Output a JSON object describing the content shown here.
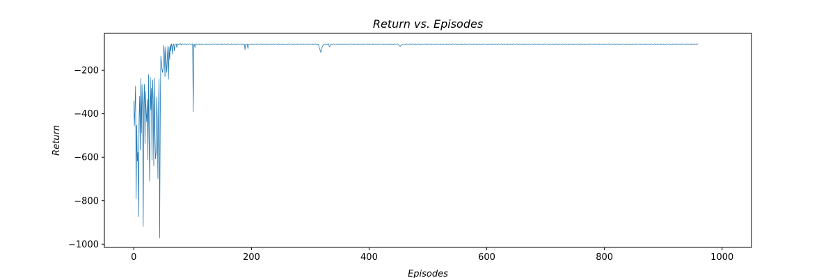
{
  "chart_data": {
    "type": "line",
    "title": "Return vs. Episodes",
    "xlabel": "Episodes",
    "ylabel": "Return",
    "xlim": [
      -50,
      1050
    ],
    "ylim": [
      -1015,
      -30
    ],
    "x_ticks": [
      0,
      200,
      400,
      600,
      800,
      1000
    ],
    "x_tick_labels": [
      "0",
      "200",
      "400",
      "600",
      "800",
      "1000"
    ],
    "y_ticks": [
      -200,
      -400,
      -600,
      -800,
      -1000
    ],
    "y_tick_labels": [
      "−200",
      "−400",
      "−600",
      "−800",
      "−1000"
    ],
    "grid": false,
    "series": [
      {
        "color": "#1f77b4",
        "x_start": 0,
        "x_step": 1,
        "values": [
          -340,
          -456,
          -365,
          -273,
          -790,
          -453,
          -618,
          -578,
          -873,
          -421,
          -319,
          -567,
          -238,
          -490,
          -266,
          -402,
          -918,
          -353,
          -265,
          -537,
          -297,
          -396,
          -438,
          -335,
          -611,
          -220,
          -513,
          -711,
          -231,
          -382,
          -283,
          -614,
          -244,
          -342,
          -640,
          -235,
          -497,
          -608,
          -579,
          -323,
          -426,
          -698,
          -385,
          -241,
          -972,
          -406,
          -135,
          -168,
          -196,
          -210,
          -180,
          -85,
          -120,
          -230,
          -92,
          -160,
          -210,
          -140,
          -88,
          -241,
          -95,
          -150,
          -82,
          -110,
          -78,
          -90,
          -125,
          -82,
          -78,
          -110,
          -85,
          -80,
          -78,
          -95,
          -80,
          -78,
          -82,
          -79,
          -80,
          -77,
          -80,
          -85,
          -80,
          -78,
          -79,
          -81,
          -80,
          -78,
          -80,
          -79,
          -82,
          -78,
          -80,
          -80,
          -79,
          -78,
          -80,
          -81,
          -79,
          -80,
          -78,
          -390,
          -82,
          -80,
          -95,
          -79,
          -78,
          -80,
          -82,
          -79,
          -80,
          -81,
          -78,
          -80,
          -79,
          -82,
          -80,
          -78,
          -79,
          -80,
          -81,
          -79,
          -80,
          -78,
          -82,
          -80,
          -79,
          -80,
          -78,
          -81,
          -80,
          -79,
          -82,
          -80,
          -78,
          -79,
          -81,
          -80,
          -79,
          -78,
          -80,
          -82,
          -79,
          -80,
          -78,
          -81,
          -80,
          -79,
          -80,
          -78,
          -82,
          -80,
          -79,
          -80,
          -78,
          -81,
          -80,
          -79,
          -82,
          -80,
          -78,
          -79,
          -80,
          -81,
          -79,
          -80,
          -78,
          -82,
          -80,
          -79,
          -80,
          -78,
          -81,
          -80,
          -79,
          -82,
          -80,
          -78,
          -79,
          -81,
          -80,
          -79,
          -78,
          -80,
          -82,
          -79,
          -80,
          -78,
          -81,
          -105,
          -80,
          -79,
          -82,
          -80,
          -100,
          -79,
          -80,
          -81,
          -79,
          -80,
          -78,
          -82,
          -80,
          -79,
          -80,
          -78,
          -81,
          -80,
          -79,
          -82,
          -80,
          -78,
          -79,
          -81,
          -80,
          -79,
          -78,
          -80,
          -82,
          -79,
          -80,
          -78,
          -81,
          -80,
          -79,
          -80,
          -78,
          -82,
          -80,
          -79,
          -80,
          -78,
          -81,
          -80,
          -79,
          -82,
          -80,
          -78,
          -79,
          -81,
          -80,
          -79,
          -78,
          -80,
          -82,
          -79,
          -80,
          -78,
          -81,
          -80,
          -79,
          -80,
          -78,
          -82,
          -80,
          -79,
          -80,
          -78,
          -81,
          -80,
          -79,
          -82,
          -80,
          -78,
          -79,
          -81,
          -80,
          -79,
          -78,
          -80,
          -82,
          -79,
          -80,
          -78,
          -81,
          -80,
          -79,
          -80,
          -78,
          -82,
          -80,
          -79,
          -80,
          -78,
          -81,
          -80,
          -79,
          -82,
          -80,
          -78,
          -79,
          -81,
          -80,
          -79,
          -78,
          -80,
          -82,
          -79,
          -80,
          -78,
          -81,
          -80,
          -79,
          -80,
          -78,
          -82,
          -80,
          -79,
          -80,
          -78,
          -81,
          -80,
          -79,
          -82,
          -80,
          -95,
          -100,
          -110,
          -118,
          -105,
          -95,
          -88,
          -85,
          -82,
          -80,
          -79,
          -81,
          -80,
          -79,
          -82,
          -80,
          -78,
          -88,
          -92,
          -85,
          -80,
          -79,
          -82,
          -80,
          -78,
          -79,
          -81,
          -80,
          -79,
          -78,
          -80,
          -82,
          -79,
          -80,
          -78,
          -81,
          -80,
          -79,
          -80,
          -78,
          -82,
          -80,
          -79,
          -80,
          -78,
          -81,
          -80,
          -79,
          -82,
          -80,
          -78,
          -79,
          -81,
          -80,
          -79,
          -78,
          -80,
          -82,
          -79,
          -80,
          -78,
          -81,
          -80,
          -79,
          -80,
          -78,
          -82,
          -80,
          -79,
          -80,
          -78,
          -81,
          -80,
          -79,
          -82,
          -80,
          -78,
          -79,
          -81,
          -80,
          -79,
          -78,
          -80,
          -82,
          -79,
          -80,
          -78,
          -81,
          -80,
          -79,
          -80,
          -78,
          -82,
          -80,
          -79,
          -80,
          -78,
          -81,
          -80,
          -79,
          -82,
          -80,
          -78,
          -79,
          -81,
          -80,
          -79,
          -78,
          -80,
          -82,
          -79,
          -80,
          -78,
          -81,
          -80,
          -79,
          -80,
          -78,
          -82,
          -80,
          -79,
          -80,
          -78,
          -81,
          -80,
          -79,
          -82,
          -80,
          -78,
          -79,
          -81,
          -80,
          -79,
          -78,
          -80,
          -82,
          -85,
          -88,
          -90,
          -86,
          -84,
          -82,
          -80,
          -79,
          -81,
          -80,
          -79,
          -82,
          -80,
          -78,
          -79,
          -81,
          -80,
          -79,
          -78,
          -80,
          -82,
          -79,
          -80,
          -78,
          -81,
          -80,
          -79,
          -80,
          -78,
          -82,
          -80,
          -79,
          -80,
          -78,
          -81,
          -80,
          -79,
          -82,
          -80,
          -78,
          -79,
          -81,
          -80,
          -79,
          -78,
          -80,
          -82,
          -79,
          -80,
          -78,
          -81,
          -80,
          -79,
          -80,
          -78,
          -82,
          -80,
          -79,
          -80,
          -78,
          -81,
          -80,
          -79,
          -82,
          -80,
          -78,
          -79,
          -81,
          -80,
          -79,
          -78,
          -80,
          -82,
          -79,
          -80,
          -78,
          -81,
          -80,
          -79,
          -80,
          -78,
          -82,
          -80,
          -79,
          -80,
          -78,
          -81,
          -80,
          -79,
          -82,
          -80,
          -78,
          -79,
          -81,
          -80,
          -79,
          -78,
          -80,
          -82,
          -79,
          -80,
          -78,
          -81,
          -80,
          -79,
          -80,
          -78,
          -82,
          -80,
          -79,
          -80,
          -78,
          -81,
          -80,
          -79,
          -82,
          -80,
          -78,
          -79,
          -81,
          -80,
          -79,
          -78,
          -80,
          -82,
          -79,
          -80,
          -78,
          -81,
          -80,
          -79,
          -80,
          -78,
          -82,
          -80,
          -79,
          -80,
          -78,
          -81,
          -80,
          -79,
          -82,
          -80,
          -78,
          -79,
          -81,
          -80,
          -79,
          -78,
          -80,
          -82,
          -79,
          -80,
          -78,
          -81,
          -80,
          -79,
          -80,
          -78,
          -82,
          -80,
          -79,
          -80,
          -78,
          -81,
          -80,
          -79,
          -82,
          -80,
          -78,
          -79,
          -81,
          -80,
          -79,
          -78,
          -80,
          -82,
          -79,
          -80,
          -78,
          -81,
          -80,
          -79,
          -80,
          -78,
          -82,
          -80,
          -79,
          -80,
          -78,
          -81,
          -80,
          -79,
          -82,
          -80,
          -78,
          -79,
          -81,
          -80,
          -79,
          -78,
          -80,
          -82,
          -79,
          -80,
          -78,
          -81,
          -80,
          -79,
          -80,
          -78,
          -82,
          -80,
          -79,
          -80,
          -78,
          -81,
          -80,
          -79,
          -82,
          -80,
          -78,
          -79,
          -81,
          -80,
          -79,
          -78,
          -80,
          -82,
          -79,
          -80,
          -78,
          -81,
          -80,
          -79,
          -80,
          -78,
          -82,
          -80,
          -79,
          -80,
          -78,
          -81,
          -80,
          -79,
          -82,
          -80,
          -78,
          -79,
          -81,
          -80,
          -79,
          -78,
          -80,
          -82,
          -79,
          -80,
          -78,
          -81,
          -80,
          -79,
          -80,
          -78,
          -82,
          -80,
          -79,
          -80,
          -78,
          -81,
          -80,
          -79,
          -82,
          -80,
          -78,
          -79,
          -81,
          -80,
          -79,
          -78,
          -80,
          -82,
          -79,
          -80,
          -78,
          -81,
          -80,
          -79,
          -80,
          -78,
          -82,
          -80,
          -79,
          -80,
          -78,
          -81,
          -80,
          -79,
          -82,
          -80,
          -78,
          -79,
          -81,
          -80,
          -79,
          -78,
          -80,
          -82,
          -79,
          -80,
          -78,
          -81,
          -80,
          -79,
          -80,
          -78,
          -82,
          -80,
          -79,
          -80,
          -78,
          -81,
          -80,
          -79,
          -82,
          -80,
          -78,
          -79,
          -81,
          -80,
          -79,
          -78,
          -80,
          -82,
          -79,
          -80,
          -78,
          -81,
          -80,
          -79,
          -80,
          -78,
          -82,
          -80,
          -79,
          -80,
          -78,
          -81,
          -80,
          -79,
          -82,
          -80,
          -78,
          -79,
          -81,
          -80,
          -79,
          -78,
          -80,
          -82,
          -79,
          -80,
          -78,
          -81,
          -80,
          -79,
          -80,
          -78,
          -82,
          -80,
          -79,
          -80,
          -78,
          -81,
          -80,
          -79,
          -82,
          -80,
          -78,
          -79,
          -81,
          -80,
          -79,
          -78,
          -80,
          -82,
          -79,
          -80,
          -78,
          -81,
          -80,
          -79,
          -80,
          -78,
          -82,
          -80,
          -79,
          -80,
          -78,
          -81,
          -80,
          -79,
          -82,
          -80,
          -78,
          -79,
          -81,
          -80,
          -79,
          -78,
          -80,
          -82,
          -79,
          -80,
          -78,
          -81,
          -80,
          -79,
          -80,
          -78,
          -82,
          -80,
          -79,
          -80,
          -78,
          -81,
          -80,
          -79,
          -82,
          -80,
          -78,
          -79,
          -81,
          -80,
          -79,
          -78,
          -80,
          -82,
          -79,
          -80,
          -78,
          -81,
          -80,
          -79,
          -80,
          -78,
          -82,
          -80,
          -79,
          -80,
          -78,
          -81,
          -80,
          -79,
          -82,
          -80,
          -78,
          -79,
          -81,
          -80,
          -79,
          -78,
          -80,
          -82,
          -79,
          -80,
          -78,
          -81,
          -80,
          -79,
          -80,
          -78,
          -82,
          -80,
          -79,
          -80,
          -78,
          -81,
          -80,
          -79,
          -82,
          -80,
          -78,
          -79,
          -81,
          -80,
          -79,
          -78,
          -80,
          -82,
          -79,
          -80,
          -78,
          -81,
          -80,
          -79,
          -80,
          -78,
          -82,
          -80,
          -79,
          -80,
          -78,
          -81,
          -80,
          -79,
          -82,
          -80,
          -78,
          -79
        ]
      }
    ]
  }
}
